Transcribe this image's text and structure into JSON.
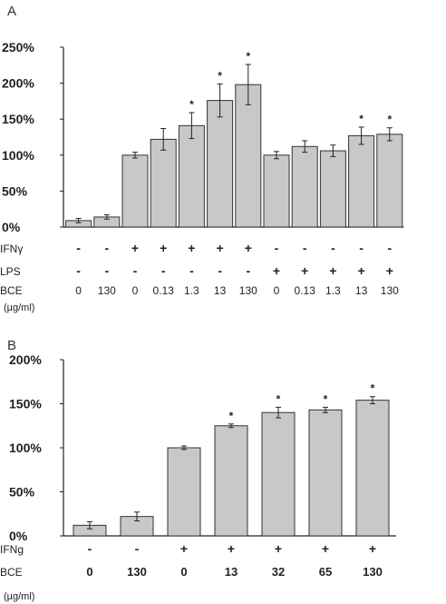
{
  "chart_data": [
    {
      "panel": "A",
      "type": "bar",
      "ylim": [
        0,
        250
      ],
      "y_ticks": [
        "0%",
        "50%",
        "100%",
        "150%",
        "200%",
        "250%"
      ],
      "bar_color": "#c8c8c8",
      "values": [
        9,
        14,
        100,
        122,
        141,
        176,
        198,
        100,
        112,
        106,
        127,
        129
      ],
      "errors": [
        3,
        3,
        4,
        15,
        18,
        23,
        28,
        5,
        8,
        8,
        12,
        9
      ],
      "significant": [
        false,
        false,
        false,
        false,
        true,
        true,
        true,
        false,
        false,
        false,
        true,
        true
      ],
      "significance_marker": "*",
      "rows": [
        {
          "label": "IFNγ",
          "cells": [
            "-",
            "-",
            "+",
            "+",
            "+",
            "+",
            "+",
            "-",
            "-",
            "-",
            "-",
            "-"
          ]
        },
        {
          "label": "LPS",
          "cells": [
            "-",
            "-",
            "-",
            "-",
            "-",
            "-",
            "-",
            "+",
            "+",
            "+",
            "+",
            "+"
          ]
        },
        {
          "label": "BCE",
          "cells": [
            "0",
            "130",
            "0",
            "0.13",
            "1.3",
            "13",
            "130",
            "0",
            "0.13",
            "1.3",
            "13",
            "130"
          ]
        }
      ],
      "unit_label": "(µg/ml)"
    },
    {
      "panel": "B",
      "type": "bar",
      "ylim": [
        0,
        200
      ],
      "y_ticks": [
        "0%",
        "50%",
        "100%",
        "150%",
        "200%"
      ],
      "bar_color": "#c8c8c8",
      "values": [
        12,
        22,
        100,
        125,
        140,
        143,
        154
      ],
      "errors": [
        4,
        5,
        2,
        2,
        6,
        3,
        4
      ],
      "significant": [
        false,
        false,
        false,
        true,
        true,
        true,
        true
      ],
      "significance_marker": "*",
      "rows": [
        {
          "label": "IFNg",
          "cells": [
            "-",
            "-",
            "+",
            "+",
            "+",
            "+",
            "+"
          ]
        },
        {
          "label": "BCE",
          "cells": [
            "0",
            "130",
            "0",
            "13",
            "32",
            "65",
            "130"
          ]
        }
      ],
      "unit_label": "(µg/ml)"
    }
  ]
}
